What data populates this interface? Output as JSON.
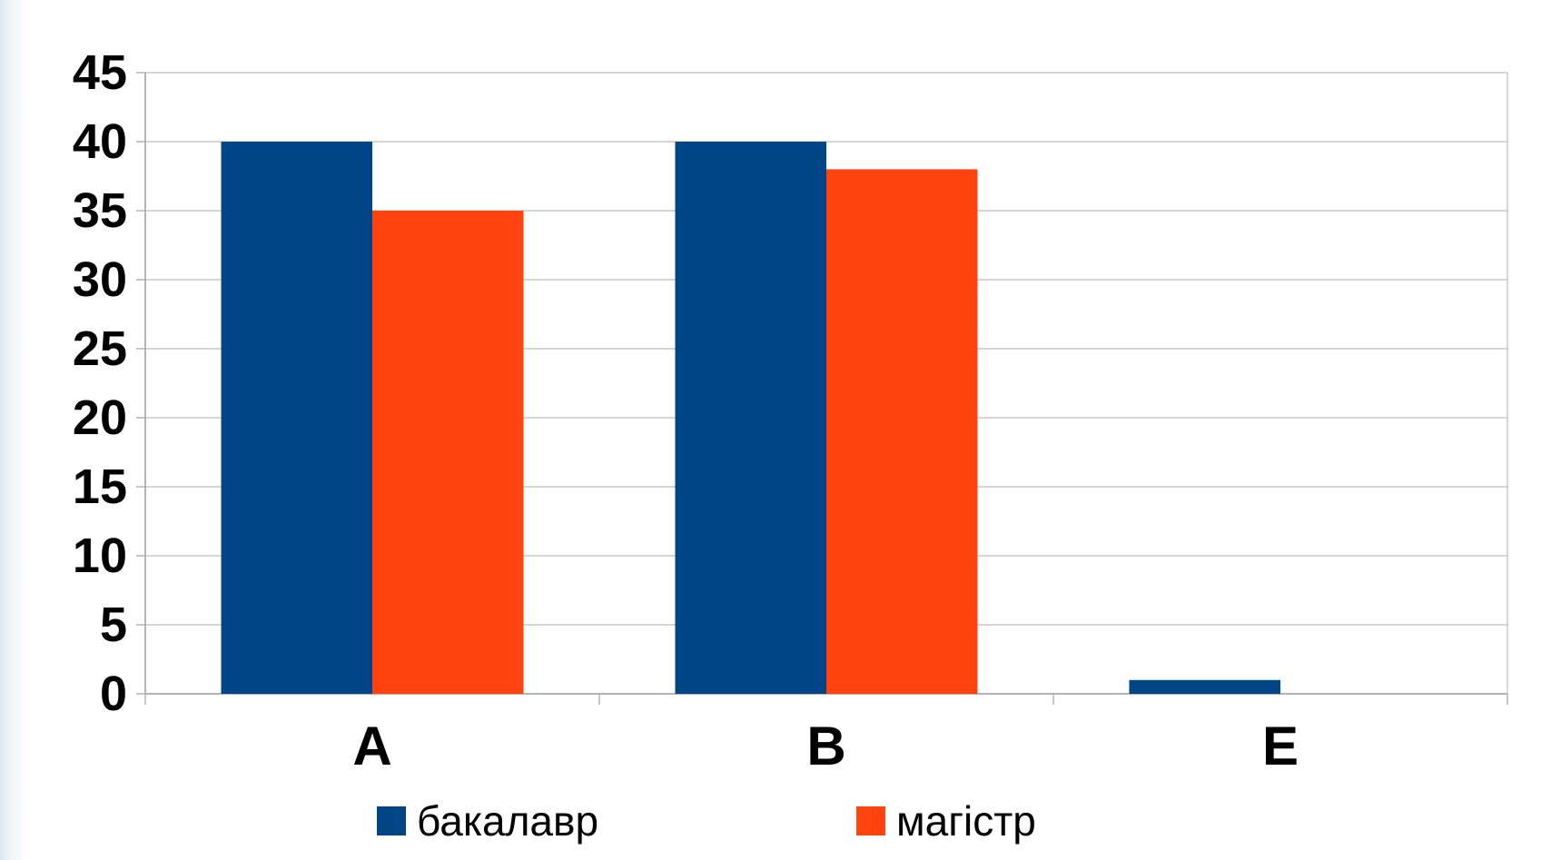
{
  "chart_data": {
    "type": "bar",
    "categories": [
      "A",
      "B",
      "E"
    ],
    "series": [
      {
        "name": "бакалавр",
        "color": "#004586",
        "values": [
          40,
          40,
          1
        ]
      },
      {
        "name": "магістр",
        "color": "#ff420e",
        "values": [
          35,
          38,
          0
        ]
      }
    ],
    "ylim": [
      0,
      45
    ],
    "yticks": [
      "0",
      "5",
      "10",
      "15",
      "20",
      "25",
      "30",
      "35",
      "40",
      "45"
    ],
    "title": "",
    "xlabel": "",
    "ylabel": "",
    "grid": true,
    "legend": "bottom"
  }
}
